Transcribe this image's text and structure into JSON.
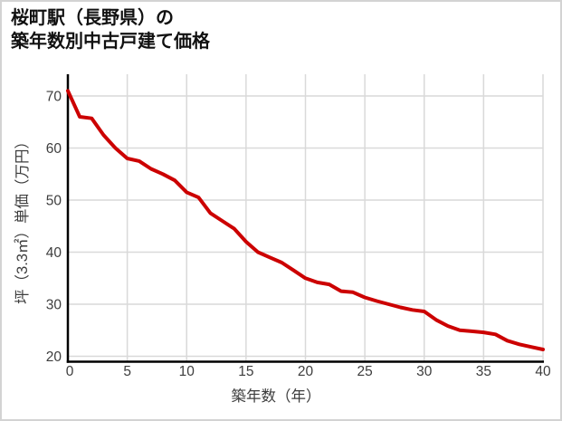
{
  "title": {
    "line1": "桜町駅（長野県）の",
    "line2": "築年数別中古戸建て価格"
  },
  "chart_data": {
    "type": "line",
    "title": "桜町駅（長野県）の築年数別中古戸建て価格",
    "xlabel": "築年数（年）",
    "ylabel": "坪（3.3㎡）単価（万円）",
    "x_ticks": [
      0,
      5,
      10,
      15,
      20,
      25,
      30,
      35,
      40
    ],
    "y_ticks": [
      20,
      30,
      40,
      50,
      60,
      70
    ],
    "xlim": [
      0,
      40
    ],
    "ylim": [
      19,
      72
    ],
    "grid": true,
    "legend": "none",
    "x": [
      0,
      1,
      2,
      3,
      4,
      5,
      6,
      7,
      8,
      9,
      10,
      11,
      12,
      13,
      14,
      15,
      16,
      17,
      18,
      19,
      20,
      21,
      22,
      23,
      24,
      25,
      26,
      27,
      28,
      29,
      30,
      31,
      32,
      33,
      34,
      35,
      36,
      37,
      38,
      39,
      40
    ],
    "values": [
      71,
      66,
      65.7,
      62.5,
      60,
      58,
      57.5,
      56,
      55,
      53.8,
      51.5,
      50.5,
      47.5,
      46,
      44.5,
      42,
      40,
      39,
      38,
      36.5,
      35,
      34.2,
      33.8,
      32.5,
      32.3,
      31.3,
      30.6,
      30,
      29.4,
      28.9,
      28.6,
      27,
      25.8,
      25,
      24.8,
      24.6,
      24.2,
      23,
      22.3,
      21.8,
      21.3
    ],
    "line_color": "#cc0000",
    "grid_color": "#d9d9d9",
    "axis_color": "#000000",
    "label_color": "#3d3d3d",
    "frame_border_color": "#d3d3d3",
    "background_color": "#ffffff"
  }
}
